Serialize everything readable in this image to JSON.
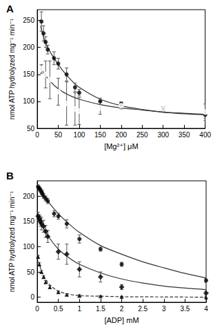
{
  "chart_data": [
    {
      "type": "scatter",
      "title": "A",
      "x_label": "[Mg²⁺] μM",
      "y_label": "nmol ATP hydrolyzed mg⁻¹ min⁻¹",
      "xlim": [
        0,
        400
      ],
      "xticks": [
        0,
        50,
        100,
        150,
        200,
        250,
        300,
        350,
        400
      ],
      "ylim": [
        50,
        270
      ],
      "yticks": [
        50,
        100,
        150,
        200,
        250
      ],
      "grid": false,
      "series": [
        {
          "type": "scatter",
          "marker": "circle",
          "color": "#000000",
          "x": [
            10,
            15,
            20,
            25,
            40,
            50,
            70,
            90,
            100,
            150,
            200,
            300,
            400
          ],
          "values": [
            248,
            226,
            210,
            196,
            180,
            170,
            150,
            126,
            116,
            100,
            95,
            85,
            75
          ],
          "errors": [
            18,
            14,
            10,
            8,
            12,
            10,
            12,
            8,
            6,
            6,
            4,
            4,
            6
          ]
        },
        {
          "type": "scatter",
          "marker": "open circle",
          "color": "#000000",
          "x": [
            10,
            20,
            30,
            50,
            70,
            90,
            100,
            150,
            200,
            300,
            400
          ],
          "values": [
            160,
            150,
            140,
            118,
            96,
            86,
            82,
            88,
            92,
            86,
            80
          ],
          "errors": [
            8,
            25,
            35,
            25,
            40,
            30,
            25,
            12,
            6,
            4,
            15
          ]
        },
        {
          "type": "line",
          "line_style": "solid",
          "color": "#333333",
          "x": [
            8,
            20,
            40,
            60,
            80,
            100,
            150,
            200,
            250,
            300,
            350,
            400
          ],
          "values": [
            240,
            208,
            180,
            158,
            140,
            126,
            104,
            92,
            85,
            80,
            77,
            75
          ]
        },
        {
          "type": "line",
          "line_style": "solid",
          "color": "#333333",
          "x": [
            8,
            20,
            40,
            60,
            80,
            100,
            150,
            200,
            250,
            300,
            350,
            400
          ],
          "values": [
            162,
            148,
            130,
            118,
            110,
            104,
            94,
            88,
            84,
            80,
            78,
            76
          ]
        }
      ]
    },
    {
      "type": "scatter",
      "title": "B",
      "x_label": "[ADP] mM",
      "y_label": "nmol ATP hydrolyzed mg⁻¹ min⁻¹",
      "xlim": [
        0,
        4
      ],
      "xticks": [
        0,
        0.5,
        1,
        1.5,
        2,
        2.5,
        3,
        3.5,
        4
      ],
      "ylim": [
        -10,
        230
      ],
      "yticks": [
        0,
        50,
        100,
        150,
        200
      ],
      "grid": false,
      "series": [
        {
          "type": "scatter",
          "marker": "circle",
          "color": "#000000",
          "x": [
            0.02,
            0.05,
            0.07,
            0.1,
            0.12,
            0.15,
            0.2,
            0.25,
            0.4,
            0.5,
            0.7,
            1,
            1.5,
            2,
            4
          ],
          "values": [
            218,
            215,
            212,
            208,
            205,
            200,
            195,
            190,
            165,
            160,
            145,
            115,
            95,
            65,
            33
          ],
          "errors": [
            4,
            4,
            4,
            5,
            5,
            5,
            5,
            5,
            6,
            6,
            8,
            8,
            4,
            4,
            4
          ]
        },
        {
          "type": "scatter",
          "marker": "diamond",
          "color": "#000000",
          "x": [
            0.02,
            0.05,
            0.08,
            0.1,
            0.15,
            0.2,
            0.25,
            0.5,
            0.7,
            1,
            1.5,
            2,
            4
          ],
          "values": [
            160,
            155,
            150,
            145,
            140,
            130,
            120,
            90,
            85,
            55,
            40,
            20,
            8
          ],
          "errors": [
            8,
            8,
            10,
            12,
            12,
            12,
            12,
            15,
            20,
            15,
            10,
            5,
            4
          ]
        },
        {
          "type": "scatter",
          "marker": "triangle",
          "color": "#000000",
          "x": [
            0.02,
            0.05,
            0.1,
            0.15,
            0.2,
            0.3,
            0.5,
            0.7,
            1,
            1.5,
            2,
            4
          ],
          "values": [
            80,
            65,
            50,
            40,
            30,
            20,
            10,
            5,
            3,
            2,
            1,
            0
          ],
          "errors": [
            3,
            3,
            3,
            3,
            3,
            3,
            2,
            2,
            2,
            1,
            1,
            1
          ]
        },
        {
          "type": "line",
          "line_style": "solid",
          "color": "#333333",
          "x": [
            0,
            0.25,
            0.5,
            0.75,
            1,
            1.5,
            2,
            2.5,
            3,
            3.5,
            4
          ],
          "values": [
            220,
            190,
            165,
            145,
            128,
            102,
            85,
            70,
            58,
            47,
            38
          ]
        },
        {
          "type": "line",
          "line_style": "solid",
          "color": "#333333",
          "x": [
            0,
            0.25,
            0.5,
            0.75,
            1,
            1.5,
            2,
            2.5,
            3,
            3.5,
            4
          ],
          "values": [
            160,
            122,
            95,
            78,
            65,
            48,
            36,
            28,
            22,
            18,
            15
          ]
        },
        {
          "type": "line",
          "line_style": "dashed",
          "color": "#333333",
          "x": [
            0,
            0.1,
            0.2,
            0.3,
            0.5,
            0.75,
            1,
            1.5,
            2,
            3,
            4
          ],
          "values": [
            80,
            52,
            35,
            24,
            12,
            6,
            3,
            2,
            1,
            0.5,
            0
          ]
        }
      ]
    }
  ]
}
